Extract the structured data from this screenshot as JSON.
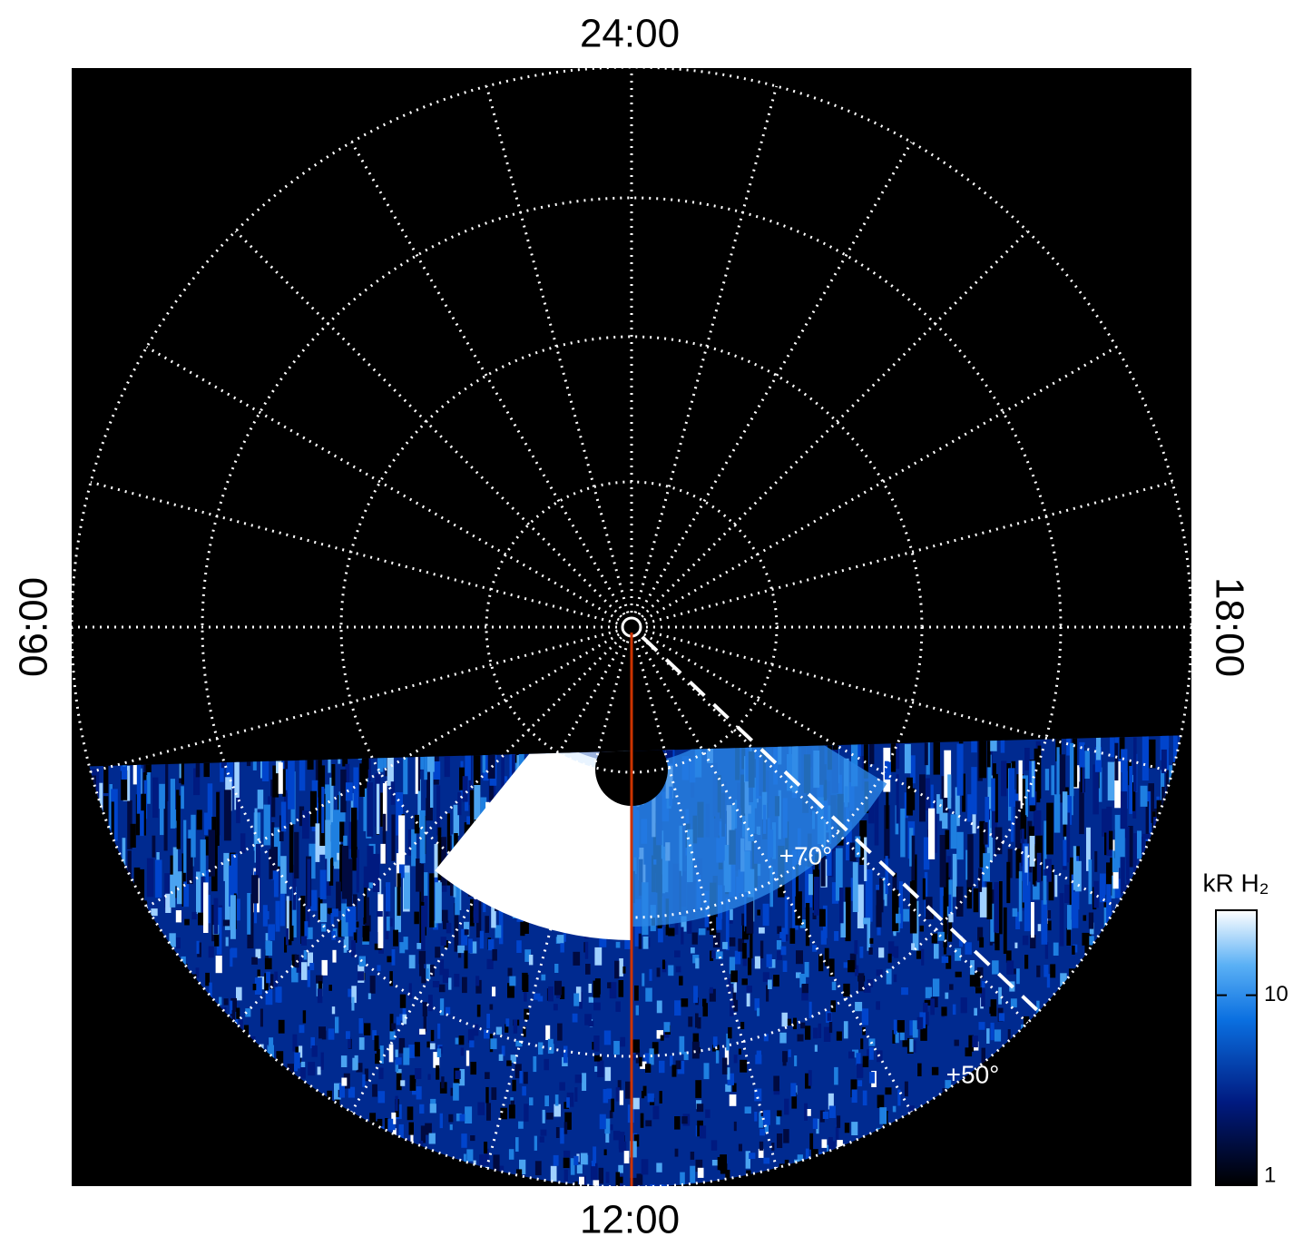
{
  "chart_data": {
    "type": "polar-image",
    "local_time_labels": {
      "top": "24:00",
      "bottom": "12:00",
      "left": "06:00",
      "right": "18:00"
    },
    "latitude_labels": [
      "+70°",
      "+50°"
    ],
    "colorbar": {
      "label": "kR H₂",
      "log": true,
      "clim": [
        1,
        28
      ],
      "ticks": [
        1,
        10
      ]
    }
  }
}
